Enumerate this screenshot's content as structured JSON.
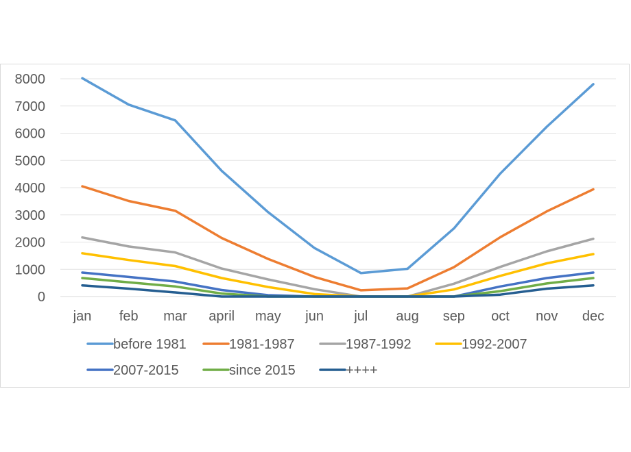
{
  "chart_data": {
    "type": "line",
    "title": "",
    "xlabel": "",
    "ylabel": "",
    "categories": [
      "jan",
      "feb",
      "mar",
      "april",
      "may",
      "jun",
      "jul",
      "aug",
      "sep",
      "oct",
      "nov",
      "dec"
    ],
    "ylim": [
      0,
      8000
    ],
    "yticks": [
      0,
      1000,
      2000,
      3000,
      4000,
      5000,
      6000,
      7000,
      8000
    ],
    "ytick_labels": [
      "0",
      "1000",
      "2000",
      "3000",
      "4000",
      "5000",
      "6000",
      "7000",
      "8000"
    ],
    "grid": true,
    "legend_position": "bottom",
    "series": [
      {
        "name": "before 1981",
        "color": "#5b9bd5",
        "values": [
          8020,
          7050,
          6470,
          4620,
          3100,
          1780,
          860,
          1020,
          2500,
          4520,
          6240,
          7800
        ]
      },
      {
        "name": "1981-1987",
        "color": "#ed7d31",
        "values": [
          4050,
          3510,
          3150,
          2150,
          1380,
          720,
          230,
          300,
          1080,
          2180,
          3130,
          3940
        ]
      },
      {
        "name": "1987-1992",
        "color": "#a5a5a5",
        "values": [
          2170,
          1840,
          1620,
          1030,
          630,
          270,
          0,
          0,
          470,
          1090,
          1660,
          2120
        ]
      },
      {
        "name": "1992-2007",
        "color": "#ffc000",
        "values": [
          1590,
          1340,
          1120,
          680,
          350,
          90,
          0,
          0,
          260,
          760,
          1220,
          1560
        ]
      },
      {
        "name": "2007-2015",
        "color": "#4472c4",
        "values": [
          880,
          720,
          550,
          240,
          50,
          0,
          0,
          0,
          0,
          370,
          680,
          880
        ]
      },
      {
        "name": "since 2015",
        "color": "#70ad47",
        "values": [
          680,
          520,
          370,
          110,
          0,
          0,
          0,
          0,
          0,
          200,
          480,
          680
        ]
      },
      {
        "name": "++++",
        "color": "#255e91",
        "values": [
          410,
          290,
          150,
          0,
          0,
          0,
          0,
          0,
          0,
          70,
          290,
          410
        ]
      }
    ]
  }
}
